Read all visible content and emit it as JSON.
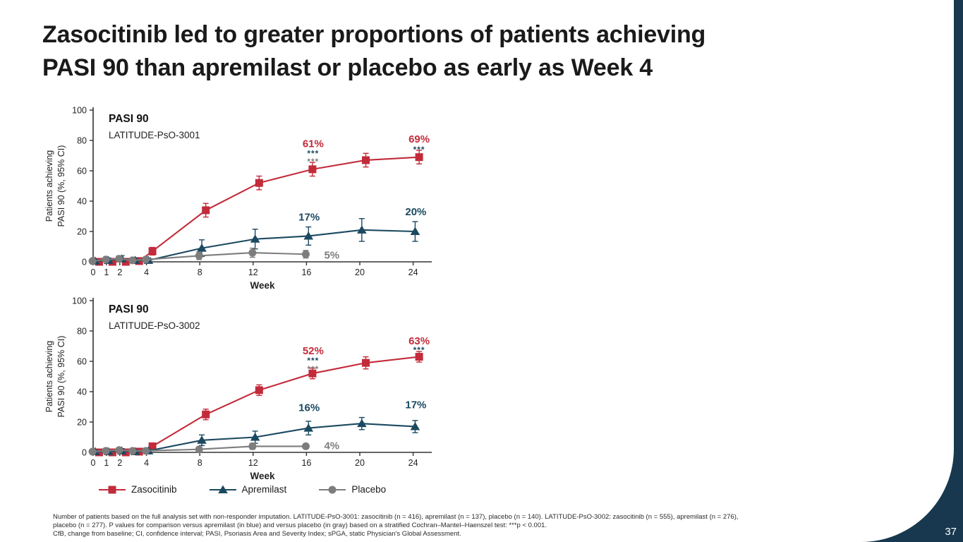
{
  "title": {
    "line1": "Zasocitinib led to greater proportions of patients achieving",
    "line2": "PASI 90 than apremilast or placebo as early as Week 4"
  },
  "page_number": "37",
  "colors": {
    "accent_navy": "#17384E",
    "zasocitinib_red": "#C22B3A",
    "apremilast_blue": "#1B4960",
    "placebo_gray": "#7D7D7D"
  },
  "legend": {
    "items": [
      {
        "label": "Zasocitinib",
        "marker": "square",
        "color": "#C22B3A"
      },
      {
        "label": "Apremilast",
        "marker": "triangle",
        "color": "#1B4960"
      },
      {
        "label": "Placebo",
        "marker": "circle",
        "color": "#7D7D7D"
      }
    ]
  },
  "footnote": {
    "lines": [
      "Number of patients based on the full analysis set with non-responder imputation. LATITUDE-PsO-3001: zasocitinib (n = 416), apremilast (n = 137), placebo (n = 140). LATITUDE-PsO-3002: zasocitinib (n = 555), apremilast (n = 276),",
      "placebo (n = 277). P values for comparison versus apremilast (in blue) and versus placebo (in gray) based on a stratified Cochran–Mantel–Haenszel test: ***p < 0.001.",
      "CfB, change from baseline; CI, confidence interval; PASI, Psoriasis Area and Severity Index; sPGA, static Physician's Global Assessment."
    ]
  },
  "chart_data": [
    {
      "type": "line",
      "title": "PASI 90",
      "subtitle": "LATITUDE-PsO-3001",
      "xlabel": "Week",
      "ylabel_lines": [
        "Patients achieving",
        "PASI 90 (%, 95% CI)"
      ],
      "x_ticks": [
        0,
        1,
        2,
        4,
        8,
        12,
        16,
        20,
        24
      ],
      "y_ticks": [
        0,
        20,
        40,
        60,
        80,
        100
      ],
      "xlim": [
        0,
        25.4
      ],
      "ylim": [
        0,
        100
      ],
      "grid": false,
      "series": [
        {
          "name": "Zasocitinib",
          "color": "#C22B3A",
          "marker": "square",
          "x_offset": 0.45,
          "x": [
            0,
            1,
            2,
            3,
            4,
            8,
            12,
            16,
            20,
            24
          ],
          "y": [
            0,
            0,
            0,
            0.5,
            7,
            34,
            52,
            61,
            67,
            69
          ],
          "ci": [
            0.5,
            0.5,
            0.5,
            0.5,
            2.5,
            4.5,
            4.5,
            4.5,
            4.5,
            4.5
          ]
        },
        {
          "name": "Apremilast",
          "color": "#1B4960",
          "marker": "triangle",
          "x_offset": 0.15,
          "x": [
            0,
            1,
            2,
            3,
            4,
            8,
            12,
            16,
            20,
            24
          ],
          "y": [
            0.5,
            1,
            2,
            1,
            1,
            9,
            15,
            17,
            21,
            20
          ],
          "ci": [
            1,
            1.5,
            2,
            1.5,
            1.5,
            5.5,
            6.5,
            6,
            7.5,
            6.5
          ]
        },
        {
          "name": "Placebo",
          "color": "#7D7D7D",
          "marker": "circle",
          "x_offset": -0.05,
          "x": [
            0,
            1,
            2,
            3,
            4,
            8,
            12,
            16
          ],
          "y": [
            0.5,
            1.5,
            2,
            1,
            1.5,
            4,
            6,
            5
          ],
          "ci": [
            1,
            1.5,
            2,
            1.5,
            1.5,
            2.5,
            3,
            2.5
          ]
        }
      ],
      "annotations": [
        {
          "text": "61%",
          "x": 16.5,
          "v": 78,
          "color": "#C22B3A",
          "size": 15,
          "bold": true
        },
        {
          "text": "***",
          "x": 16.5,
          "v": 71.5,
          "color": "#1B4960",
          "size": 12,
          "bold": true
        },
        {
          "text": "***",
          "x": 16.5,
          "v": 66,
          "color": "#7D7D7D",
          "size": 12,
          "bold": true
        },
        {
          "text": "69%",
          "x": 24.45,
          "v": 81,
          "color": "#C22B3A",
          "size": 15,
          "bold": true
        },
        {
          "text": "***",
          "x": 24.45,
          "v": 74,
          "color": "#1B4960",
          "size": 12,
          "bold": true
        },
        {
          "text": "17%",
          "x": 16.2,
          "v": 29.5,
          "color": "#1B4960",
          "size": 15,
          "bold": true
        },
        {
          "text": "20%",
          "x": 24.2,
          "v": 33,
          "color": "#1B4960",
          "size": 15,
          "bold": true
        },
        {
          "text": "5%",
          "x": 17.9,
          "v": 4.5,
          "color": "#7D7D7D",
          "size": 15,
          "bold": true
        }
      ]
    },
    {
      "type": "line",
      "title": "PASI 90",
      "subtitle": "LATITUDE-PsO-3002",
      "xlabel": "Week",
      "ylabel_lines": [
        "Patients achieving",
        "PASI 90 (%, 95% CI)"
      ],
      "x_ticks": [
        0,
        1,
        2,
        4,
        8,
        12,
        16,
        20,
        24
      ],
      "y_ticks": [
        0,
        20,
        40,
        60,
        80,
        100
      ],
      "xlim": [
        0,
        25.4
      ],
      "ylim": [
        0,
        100
      ],
      "grid": false,
      "series": [
        {
          "name": "Zasocitinib",
          "color": "#C22B3A",
          "marker": "square",
          "x_offset": 0.45,
          "x": [
            0,
            1,
            2,
            3,
            4,
            8,
            12,
            16,
            20,
            24
          ],
          "y": [
            0,
            0,
            0,
            0.5,
            4,
            25,
            41,
            52,
            59,
            63
          ],
          "ci": [
            0.5,
            0.5,
            0.5,
            0.5,
            1.5,
            3.5,
            3.5,
            3.5,
            4,
            3.5
          ]
        },
        {
          "name": "Apremilast",
          "color": "#1B4960",
          "marker": "triangle",
          "x_offset": 0.15,
          "x": [
            0,
            1,
            2,
            3,
            4,
            8,
            12,
            16,
            20,
            24
          ],
          "y": [
            0.5,
            0.5,
            1,
            0.5,
            1,
            8,
            10,
            16,
            19,
            17
          ],
          "ci": [
            0.5,
            1,
            1.5,
            1,
            1,
            3.5,
            4,
            4.5,
            4,
            4
          ]
        },
        {
          "name": "Placebo",
          "color": "#7D7D7D",
          "marker": "circle",
          "x_offset": -0.05,
          "x": [
            0,
            1,
            2,
            3,
            4,
            8,
            12,
            16
          ],
          "y": [
            0.5,
            1,
            1.5,
            1,
            1,
            2,
            4,
            4
          ],
          "ci": [
            0.5,
            1,
            1.5,
            1,
            1,
            1.5,
            2,
            1.5
          ]
        }
      ],
      "annotations": [
        {
          "text": "52%",
          "x": 16.5,
          "v": 67,
          "color": "#C22B3A",
          "size": 15,
          "bold": true
        },
        {
          "text": "***",
          "x": 16.5,
          "v": 60.5,
          "color": "#1B4960",
          "size": 12,
          "bold": true
        },
        {
          "text": "***",
          "x": 16.5,
          "v": 55,
          "color": "#7D7D7D",
          "size": 12,
          "bold": true
        },
        {
          "text": "63%",
          "x": 24.45,
          "v": 73.5,
          "color": "#C22B3A",
          "size": 15,
          "bold": true
        },
        {
          "text": "***",
          "x": 24.45,
          "v": 67.5,
          "color": "#1B4960",
          "size": 12,
          "bold": true
        },
        {
          "text": "16%",
          "x": 16.2,
          "v": 29.5,
          "color": "#1B4960",
          "size": 15,
          "bold": true
        },
        {
          "text": "17%",
          "x": 24.2,
          "v": 31.5,
          "color": "#1B4960",
          "size": 15,
          "bold": true
        },
        {
          "text": "4%",
          "x": 17.9,
          "v": 4.5,
          "color": "#7D7D7D",
          "size": 15,
          "bold": true
        }
      ]
    }
  ]
}
